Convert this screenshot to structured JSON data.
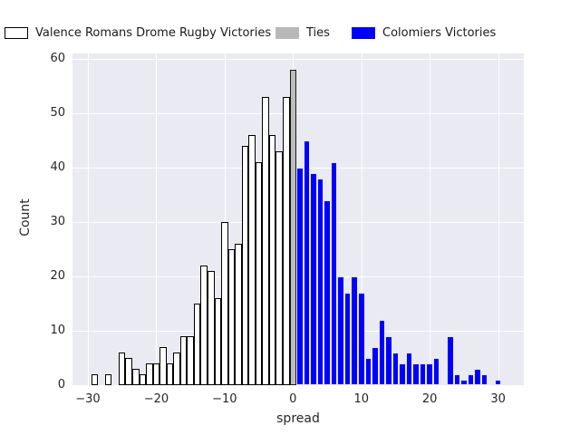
{
  "legend": {
    "items": [
      {
        "label": "Valence Romans Drome Rugby Victories",
        "color": "#ffffff",
        "edge": "#000000"
      },
      {
        "label": "Ties",
        "color": "#b8b8b8",
        "edge": "none"
      },
      {
        "label": "Colomiers Victories",
        "color": "#0000ff",
        "edge": "none"
      }
    ]
  },
  "chart_data": {
    "type": "histogram",
    "title": "",
    "xlabel": "spread",
    "ylabel": "Count",
    "xlim": [
      -32.25,
      33.76
    ],
    "ylim": [
      0,
      61
    ],
    "bin_width": 1,
    "grid": true,
    "legend_position": "top",
    "plot_bg": "#eaeaf2",
    "grid_color": "#ffffff",
    "xticks": {
      "values": [
        -30,
        -20,
        -10,
        0,
        10,
        20,
        30
      ],
      "labels": [
        "−30",
        "−20",
        "−10",
        "0",
        "10",
        "20",
        "30"
      ]
    },
    "yticks": {
      "values": [
        0,
        10,
        20,
        30,
        40,
        50,
        60
      ],
      "labels": [
        "0",
        "10",
        "20",
        "30",
        "40",
        "50",
        "60"
      ]
    },
    "series": [
      {
        "name": "Valence Romans Drome Rugby Victories",
        "fill": "#ffffff",
        "edge": "#000000",
        "bins": [
          [
            -29,
            2
          ],
          [
            -27,
            2
          ],
          [
            -25,
            6
          ],
          [
            -24,
            5
          ],
          [
            -23,
            3
          ],
          [
            -22,
            2
          ],
          [
            -21,
            4
          ],
          [
            -20,
            4
          ],
          [
            -19,
            7
          ],
          [
            -18,
            4
          ],
          [
            -17,
            6
          ],
          [
            -16,
            9
          ],
          [
            -15,
            9
          ],
          [
            -14,
            15
          ],
          [
            -13,
            22
          ],
          [
            -12,
            21
          ],
          [
            -11,
            16
          ],
          [
            -10,
            30
          ],
          [
            -9,
            25
          ],
          [
            -8,
            26
          ],
          [
            -7,
            44
          ],
          [
            -6,
            46
          ],
          [
            -5,
            41
          ],
          [
            -4,
            53
          ],
          [
            -3,
            46
          ],
          [
            -2,
            43
          ],
          [
            -1,
            53
          ]
        ]
      },
      {
        "name": "Ties",
        "fill": "#bdbdbd",
        "edge": "#1a1a1a",
        "bins": [
          [
            0,
            58
          ]
        ]
      },
      {
        "name": "Colomiers Victories",
        "fill": "#0000ff",
        "edge": "#e8e8f5",
        "bins": [
          [
            1,
            40
          ],
          [
            2,
            45
          ],
          [
            3,
            39
          ],
          [
            4,
            38
          ],
          [
            5,
            34
          ],
          [
            6,
            41
          ],
          [
            7,
            20
          ],
          [
            8,
            17
          ],
          [
            9,
            20
          ],
          [
            10,
            17
          ],
          [
            11,
            5
          ],
          [
            12,
            7
          ],
          [
            13,
            12
          ],
          [
            14,
            9
          ],
          [
            15,
            6
          ],
          [
            16,
            4
          ],
          [
            17,
            6
          ],
          [
            18,
            4
          ],
          [
            19,
            4
          ],
          [
            20,
            4
          ],
          [
            21,
            5
          ],
          [
            23,
            9
          ],
          [
            24,
            2
          ],
          [
            25,
            1
          ],
          [
            26,
            2
          ],
          [
            27,
            3
          ],
          [
            28,
            2
          ],
          [
            30,
            1
          ]
        ]
      }
    ]
  }
}
